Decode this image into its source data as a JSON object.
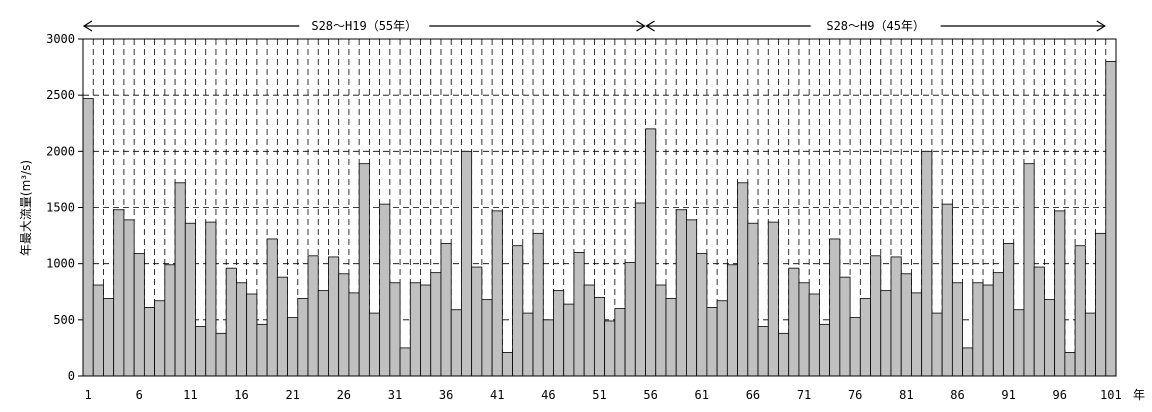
{
  "chart_data": {
    "type": "bar",
    "ylabel": "年最大流量(m³/s)",
    "xunit": "年",
    "ylim": [
      0,
      3000
    ],
    "yticks": [
      0,
      500,
      1000,
      1500,
      2000,
      2500,
      3000
    ],
    "xticks": [
      1,
      6,
      11,
      16,
      21,
      26,
      31,
      36,
      41,
      46,
      51,
      56,
      61,
      66,
      71,
      76,
      81,
      86,
      91,
      96,
      101
    ],
    "grid": true,
    "periods": [
      {
        "label": "S28～H19（55年）",
        "start": 1,
        "end": 56
      },
      {
        "label": "S28～H9（45年）",
        "start": 56,
        "end": 101
      }
    ],
    "x": [
      1,
      2,
      3,
      4,
      5,
      6,
      7,
      8,
      9,
      10,
      11,
      12,
      13,
      14,
      15,
      16,
      17,
      18,
      19,
      20,
      21,
      22,
      23,
      24,
      25,
      26,
      27,
      28,
      29,
      30,
      31,
      32,
      33,
      34,
      35,
      36,
      37,
      38,
      39,
      40,
      41,
      42,
      43,
      44,
      45,
      46,
      47,
      48,
      49,
      50,
      51,
      52,
      53,
      54,
      55,
      56,
      57,
      58,
      59,
      60,
      61,
      62,
      63,
      64,
      65,
      66,
      67,
      68,
      69,
      70,
      71,
      72,
      73,
      74,
      75,
      76,
      77,
      78,
      79,
      80,
      81,
      82,
      83,
      84,
      85,
      86,
      87,
      88,
      89,
      90,
      91,
      92,
      93,
      94,
      95,
      96,
      97,
      98,
      99,
      100,
      101
    ],
    "values": [
      2470,
      810,
      690,
      1480,
      1390,
      1090,
      610,
      670,
      990,
      1720,
      1360,
      440,
      1370,
      380,
      960,
      830,
      730,
      460,
      1220,
      880,
      520,
      690,
      1070,
      760,
      1060,
      910,
      740,
      1890,
      560,
      1530,
      830,
      250,
      830,
      810,
      920,
      1180,
      590,
      2000,
      970,
      680,
      1470,
      210,
      1160,
      560,
      1270,
      500,
      760,
      640,
      1100,
      810,
      700,
      490,
      600,
      1010,
      1540,
      2200,
      810,
      690,
      1480,
      1390,
      1090,
      610,
      670,
      990,
      1720,
      1360,
      440,
      1370,
      380,
      960,
      830,
      730,
      460,
      1220,
      880,
      520,
      690,
      1070,
      760,
      1060,
      910,
      740,
      2000,
      560,
      1530,
      830,
      250,
      830,
      810,
      920,
      1180,
      590,
      1890,
      970,
      680,
      1470,
      210,
      1160,
      560,
      1270,
      2800
    ]
  }
}
